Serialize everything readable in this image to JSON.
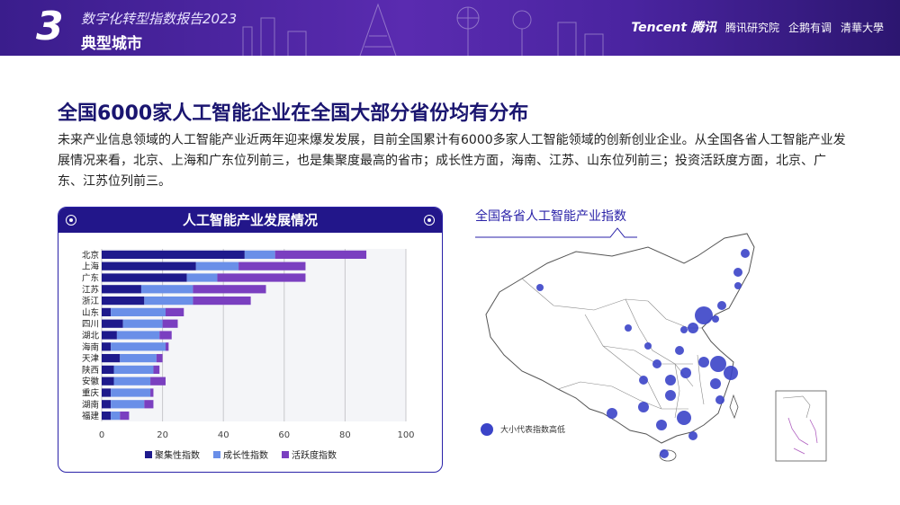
{
  "header": {
    "section_number": "3",
    "report_title": "数字化转型指数报告2023",
    "section_title": "典型城市",
    "logos": [
      "Tencent 腾讯",
      "腾讯研究院",
      "企鹅有调",
      "清華大學"
    ]
  },
  "headline": "全国6000家人工智能企业在全国大部分省份均有分布",
  "paragraph": "未来产业信息领域的人工智能产业近两年迎来爆发发展，目前全国累计有6000多家人工智能领域的创新创业企业。从全国各省人工智能产业发展情况来看，北京、上海和广东位列前三，也是集聚度最高的省市；成长性方面，海南、江苏、山东位列前三；投资活跃度方面，北京、广东、江苏位列前三。",
  "colors": {
    "primary": "#1a1570",
    "series1": "#1e1a8c",
    "series2": "#6a8fe8",
    "series3": "#7a3fc0"
  },
  "chart_data": [
    {
      "type": "bar",
      "orientation": "horizontal",
      "stacked": true,
      "title": "人工智能产业发展情况",
      "categories": [
        "北京",
        "上海",
        "广东",
        "江苏",
        "浙江",
        "山东",
        "四川",
        "湖北",
        "海南",
        "天津",
        "陕西",
        "安徽",
        "重庆",
        "湖南",
        "福建"
      ],
      "series": [
        {
          "name": "聚集性指数",
          "values": [
            47,
            31,
            28,
            13,
            14,
            3,
            7,
            5,
            3,
            6,
            4,
            4,
            3,
            3,
            3
          ]
        },
        {
          "name": "成长性指数",
          "values": [
            10,
            14,
            10,
            17,
            16,
            18,
            13,
            14,
            18,
            12,
            13,
            12,
            13,
            11,
            3
          ]
        },
        {
          "name": "活跃度指数",
          "values": [
            30,
            22,
            29,
            24,
            19,
            6,
            5,
            4,
            1,
            2,
            2,
            5,
            1,
            3,
            3
          ]
        }
      ],
      "xlim": [
        0,
        100
      ],
      "xticks": [
        0,
        20,
        40,
        60,
        80,
        100
      ],
      "grid": true,
      "legend": "bottom"
    },
    {
      "type": "map",
      "title": "全国各省人工智能产业指数",
      "legend_label": "大小代表指数高低"
    }
  ]
}
